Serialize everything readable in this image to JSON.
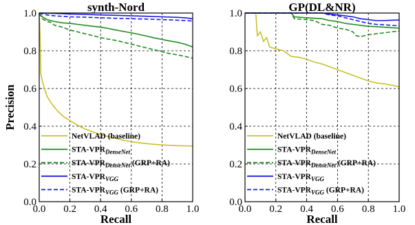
{
  "colors": {
    "netvlad": "#c8c02a",
    "densenet": "#1e8a1e",
    "vgg": "#1a1ae0"
  },
  "chart_data": [
    {
      "type": "line",
      "title": "synth-Nord",
      "xlabel": "Recall",
      "ylabel": "Precision",
      "xlim": [
        0,
        1
      ],
      "ylim": [
        0,
        1
      ],
      "xticks": [
        "0.0",
        "0.2",
        "0.4",
        "0.6",
        "0.8",
        "1.0"
      ],
      "yticks": [
        "0.0",
        "0.2",
        "0.4",
        "0.6",
        "0.8",
        "1.0"
      ],
      "grid": true,
      "legend_position": "bottom",
      "series": [
        {
          "name": "NetVLAD (baseline)",
          "name_main": "NetVLAD (baseline)",
          "name_sub": "",
          "name_suffix": "",
          "color": "netvlad",
          "dash": "solid",
          "points": [
            [
              0,
              1.0
            ],
            [
              0.005,
              0.89
            ],
            [
              0.01,
              0.68
            ],
            [
              0.02,
              0.64
            ],
            [
              0.03,
              0.61
            ],
            [
              0.05,
              0.56
            ],
            [
              0.08,
              0.52
            ],
            [
              0.12,
              0.48
            ],
            [
              0.16,
              0.45
            ],
            [
              0.2,
              0.43
            ],
            [
              0.25,
              0.405
            ],
            [
              0.3,
              0.385
            ],
            [
              0.35,
              0.37
            ],
            [
              0.4,
              0.355
            ],
            [
              0.45,
              0.345
            ],
            [
              0.5,
              0.335
            ],
            [
              0.55,
              0.325
            ],
            [
              0.6,
              0.318
            ],
            [
              0.65,
              0.312
            ],
            [
              0.7,
              0.308
            ],
            [
              0.75,
              0.304
            ],
            [
              0.8,
              0.301
            ],
            [
              0.85,
              0.299
            ],
            [
              0.9,
              0.297
            ],
            [
              0.95,
              0.296
            ],
            [
              1.0,
              0.295
            ]
          ]
        },
        {
          "name": "STA-VPR DenseNet",
          "name_main": "STA-VPR",
          "name_sub": "DenseNet",
          "name_suffix": "",
          "color": "densenet",
          "dash": "solid",
          "points": [
            [
              0,
              1.0
            ],
            [
              0.02,
              0.98
            ],
            [
              0.05,
              0.965
            ],
            [
              0.1,
              0.955
            ],
            [
              0.15,
              0.948
            ],
            [
              0.2,
              0.945
            ],
            [
              0.25,
              0.94
            ],
            [
              0.3,
              0.935
            ],
            [
              0.35,
              0.93
            ],
            [
              0.4,
              0.925
            ],
            [
              0.45,
              0.918
            ],
            [
              0.5,
              0.91
            ],
            [
              0.55,
              0.902
            ],
            [
              0.6,
              0.895
            ],
            [
              0.65,
              0.887
            ],
            [
              0.7,
              0.878
            ],
            [
              0.75,
              0.868
            ],
            [
              0.8,
              0.86
            ],
            [
              0.85,
              0.852
            ],
            [
              0.9,
              0.845
            ],
            [
              0.95,
              0.835
            ],
            [
              1.0,
              0.82
            ]
          ]
        },
        {
          "name": "STA-VPR DenseNet (GRP+RA)",
          "name_main": "STA-VPR",
          "name_sub": "DenseNet",
          "name_suffix": " (GRP+RA)",
          "color": "densenet",
          "dash": "dashed",
          "points": [
            [
              0,
              1.0
            ],
            [
              0.02,
              0.97
            ],
            [
              0.05,
              0.955
            ],
            [
              0.08,
              0.95
            ],
            [
              0.1,
              0.935
            ],
            [
              0.15,
              0.925
            ],
            [
              0.2,
              0.91
            ],
            [
              0.25,
              0.9
            ],
            [
              0.3,
              0.89
            ],
            [
              0.35,
              0.88
            ],
            [
              0.4,
              0.87
            ],
            [
              0.45,
              0.862
            ],
            [
              0.5,
              0.855
            ],
            [
              0.55,
              0.845
            ],
            [
              0.6,
              0.835
            ],
            [
              0.65,
              0.825
            ],
            [
              0.7,
              0.815
            ],
            [
              0.75,
              0.805
            ],
            [
              0.8,
              0.795
            ],
            [
              0.85,
              0.785
            ],
            [
              0.9,
              0.778
            ],
            [
              0.95,
              0.77
            ],
            [
              1.0,
              0.76
            ]
          ]
        },
        {
          "name": "STA-VPR VGG",
          "name_main": "STA-VPR",
          "name_sub": "VGG",
          "name_suffix": "",
          "color": "vgg",
          "dash": "solid",
          "points": [
            [
              0,
              1.0
            ],
            [
              0.1,
              0.998
            ],
            [
              0.2,
              0.995
            ],
            [
              0.3,
              0.993
            ],
            [
              0.4,
              0.99
            ],
            [
              0.5,
              0.988
            ],
            [
              0.6,
              0.985
            ],
            [
              0.7,
              0.983
            ],
            [
              0.8,
              0.98
            ],
            [
              0.9,
              0.977
            ],
            [
              0.95,
              0.975
            ],
            [
              1.0,
              0.97
            ]
          ]
        },
        {
          "name": "STA-VPR VGG (GRP+RA)",
          "name_main": "STA-VPR",
          "name_sub": "VGG",
          "name_suffix": " (GRP+RA)",
          "color": "vgg",
          "dash": "dashed",
          "points": [
            [
              0,
              1.0
            ],
            [
              0.05,
              0.99
            ],
            [
              0.1,
              0.985
            ],
            [
              0.2,
              0.98
            ],
            [
              0.3,
              0.978
            ],
            [
              0.4,
              0.975
            ],
            [
              0.5,
              0.972
            ],
            [
              0.6,
              0.97
            ],
            [
              0.7,
              0.968
            ],
            [
              0.8,
              0.965
            ],
            [
              0.9,
              0.962
            ],
            [
              1.0,
              0.958
            ]
          ]
        }
      ]
    },
    {
      "type": "line",
      "title": "GP(DL&NR)",
      "xlabel": "Recall",
      "ylabel": "",
      "xlim": [
        0,
        1
      ],
      "ylim": [
        0,
        1
      ],
      "xticks": [
        "0.0",
        "0.2",
        "0.4",
        "0.6",
        "0.8",
        "1.0"
      ],
      "yticks": [
        "0.0",
        "0.2",
        "0.4",
        "0.6",
        "0.8",
        "1.0"
      ],
      "grid": true,
      "legend_position": "bottom",
      "series": [
        {
          "name": "NetVLAD (baseline)",
          "name_main": "NetVLAD (baseline)",
          "name_sub": "",
          "name_suffix": "",
          "color": "netvlad",
          "dash": "solid",
          "points": [
            [
              0,
              1.0
            ],
            [
              0.07,
              1.0
            ],
            [
              0.08,
              0.88
            ],
            [
              0.1,
              0.9
            ],
            [
              0.12,
              0.85
            ],
            [
              0.14,
              0.87
            ],
            [
              0.16,
              0.82
            ],
            [
              0.2,
              0.81
            ],
            [
              0.25,
              0.8
            ],
            [
              0.3,
              0.77
            ],
            [
              0.35,
              0.765
            ],
            [
              0.4,
              0.755
            ],
            [
              0.45,
              0.74
            ],
            [
              0.5,
              0.73
            ],
            [
              0.55,
              0.715
            ],
            [
              0.6,
              0.7
            ],
            [
              0.65,
              0.685
            ],
            [
              0.7,
              0.67
            ],
            [
              0.75,
              0.655
            ],
            [
              0.8,
              0.64
            ],
            [
              0.85,
              0.63
            ],
            [
              0.9,
              0.625
            ],
            [
              0.95,
              0.618
            ],
            [
              1.0,
              0.61
            ]
          ]
        },
        {
          "name": "STA-VPR DenseNet",
          "name_main": "STA-VPR",
          "name_sub": "DenseNet",
          "name_suffix": "",
          "color": "densenet",
          "dash": "solid",
          "points": [
            [
              0,
              1.0
            ],
            [
              0.3,
              1.0
            ],
            [
              0.32,
              0.98
            ],
            [
              0.4,
              0.975
            ],
            [
              0.5,
              0.97
            ],
            [
              0.55,
              0.96
            ],
            [
              0.6,
              0.955
            ],
            [
              0.65,
              0.945
            ],
            [
              0.7,
              0.94
            ],
            [
              0.75,
              0.935
            ],
            [
              0.8,
              0.93
            ],
            [
              0.85,
              0.928
            ],
            [
              0.9,
              0.925
            ],
            [
              0.95,
              0.922
            ],
            [
              1.0,
              0.92
            ]
          ]
        },
        {
          "name": "STA-VPR DenseNet (GRP+RA)",
          "name_main": "STA-VPR",
          "name_sub": "DenseNet",
          "name_suffix": " (GRP+RA)",
          "color": "densenet",
          "dash": "dashed",
          "points": [
            [
              0,
              1.0
            ],
            [
              0.3,
              1.0
            ],
            [
              0.32,
              0.97
            ],
            [
              0.4,
              0.965
            ],
            [
              0.45,
              0.96
            ],
            [
              0.5,
              0.94
            ],
            [
              0.55,
              0.935
            ],
            [
              0.6,
              0.92
            ],
            [
              0.65,
              0.915
            ],
            [
              0.7,
              0.9
            ],
            [
              0.72,
              0.88
            ],
            [
              0.75,
              0.875
            ],
            [
              0.8,
              0.885
            ],
            [
              0.85,
              0.89
            ],
            [
              0.9,
              0.895
            ],
            [
              0.95,
              0.9
            ],
            [
              1.0,
              0.905
            ]
          ]
        },
        {
          "name": "STA-VPR VGG",
          "name_main": "STA-VPR",
          "name_sub": "VGG",
          "name_suffix": "",
          "color": "vgg",
          "dash": "solid",
          "points": [
            [
              0,
              1.0
            ],
            [
              0.5,
              1.0
            ],
            [
              0.55,
              0.995
            ],
            [
              0.6,
              0.99
            ],
            [
              0.65,
              0.985
            ],
            [
              0.7,
              0.98
            ],
            [
              0.75,
              0.97
            ],
            [
              0.8,
              0.965
            ],
            [
              0.85,
              0.96
            ],
            [
              0.9,
              0.96
            ],
            [
              0.95,
              0.962
            ],
            [
              1.0,
              0.963
            ]
          ]
        },
        {
          "name": "STA-VPR VGG (GRP+RA)",
          "name_main": "STA-VPR",
          "name_sub": "VGG",
          "name_suffix": " (GRP+RA)",
          "color": "vgg",
          "dash": "dashed",
          "points": [
            [
              0,
              1.0
            ],
            [
              0.5,
              1.0
            ],
            [
              0.55,
              0.99
            ],
            [
              0.6,
              0.985
            ],
            [
              0.65,
              0.975
            ],
            [
              0.7,
              0.965
            ],
            [
              0.75,
              0.955
            ],
            [
              0.8,
              0.945
            ],
            [
              0.85,
              0.94
            ],
            [
              0.9,
              0.938
            ],
            [
              0.95,
              0.935
            ],
            [
              1.0,
              0.932
            ]
          ]
        }
      ]
    }
  ]
}
